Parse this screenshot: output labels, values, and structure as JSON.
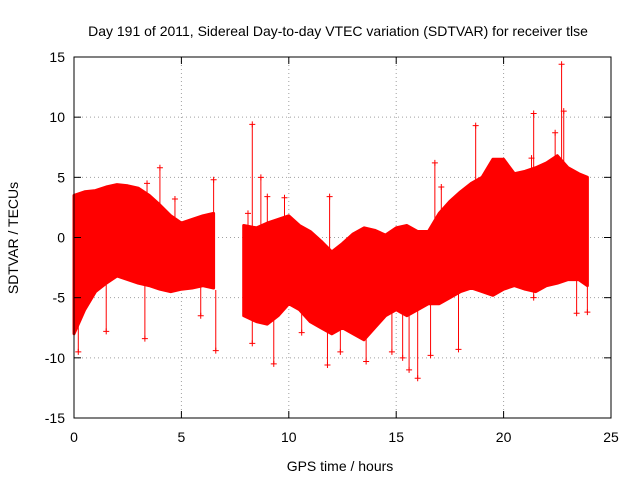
{
  "chart_data": {
    "type": "scatter",
    "title": "Day 191 of 2011, Sidereal Day-to-day VTEC variation (SDTVAR) for receiver tlse",
    "xlabel": "GPS time / hours",
    "ylabel": "SDTVAR / TECUs",
    "xlim": [
      0,
      25
    ],
    "ylim": [
      -15,
      15
    ],
    "xticks": [
      "0",
      "5",
      "10",
      "15",
      "20",
      "25"
    ],
    "yticks": [
      "-15",
      "-10",
      "-5",
      "0",
      "5",
      "10",
      "15"
    ],
    "grid": true,
    "marker": "plus",
    "series_color": "#ff0000",
    "gaps": [
      [
        6.6,
        7.9
      ]
    ],
    "envelope": {
      "x": [
        0.0,
        0.5,
        1.0,
        1.5,
        2.0,
        2.5,
        3.0,
        3.5,
        4.0,
        4.5,
        5.0,
        5.5,
        6.0,
        6.5,
        7.9,
        8.5,
        9.0,
        9.5,
        10.0,
        10.5,
        11.0,
        11.5,
        12.0,
        12.5,
        13.0,
        13.5,
        14.0,
        14.5,
        15.0,
        15.5,
        16.0,
        16.5,
        17.0,
        17.5,
        18.0,
        18.5,
        19.0,
        19.5,
        20.0,
        20.5,
        21.0,
        21.5,
        22.0,
        22.5,
        23.0,
        23.5,
        23.9
      ],
      "upper": [
        3.5,
        3.8,
        3.9,
        4.2,
        4.4,
        4.3,
        4.1,
        3.5,
        2.7,
        1.8,
        1.2,
        1.5,
        1.8,
        2.0,
        1.0,
        0.8,
        1.2,
        1.5,
        1.8,
        1.0,
        0.5,
        -0.3,
        -1.2,
        -0.5,
        0.3,
        0.8,
        0.6,
        0.2,
        0.8,
        1.0,
        0.5,
        0.5,
        2.0,
        3.0,
        3.8,
        4.5,
        5.0,
        6.5,
        6.5,
        5.3,
        5.5,
        5.8,
        6.2,
        6.8,
        5.8,
        5.3,
        5.0
      ],
      "lower": [
        -8.0,
        -6.0,
        -4.5,
        -3.8,
        -3.2,
        -3.5,
        -3.8,
        -4.0,
        -4.3,
        -4.5,
        -4.3,
        -4.2,
        -4.0,
        -4.2,
        -6.5,
        -7.0,
        -7.2,
        -6.5,
        -5.5,
        -6.0,
        -7.0,
        -7.5,
        -8.0,
        -7.5,
        -8.0,
        -8.5,
        -7.5,
        -6.5,
        -6.0,
        -6.5,
        -6.0,
        -5.5,
        -5.5,
        -5.0,
        -4.5,
        -4.2,
        -4.5,
        -4.8,
        -4.3,
        -4.0,
        -4.3,
        -4.5,
        -4.0,
        -3.8,
        -3.5,
        -3.5,
        -4.0
      ]
    },
    "outliers": [
      {
        "x": 0.2,
        "y": -9.5
      },
      {
        "x": 1.5,
        "y": -7.8
      },
      {
        "x": 3.4,
        "y": 4.5
      },
      {
        "x": 3.3,
        "y": -8.4
      },
      {
        "x": 4.0,
        "y": 5.8
      },
      {
        "x": 4.7,
        "y": 3.2
      },
      {
        "x": 5.9,
        "y": -6.5
      },
      {
        "x": 6.5,
        "y": 4.8
      },
      {
        "x": 6.6,
        "y": -9.4
      },
      {
        "x": 8.1,
        "y": 2.0
      },
      {
        "x": 8.3,
        "y": -8.8
      },
      {
        "x": 8.3,
        "y": 9.4
      },
      {
        "x": 8.7,
        "y": 5.0
      },
      {
        "x": 9.0,
        "y": 3.4
      },
      {
        "x": 9.3,
        "y": -10.5
      },
      {
        "x": 9.8,
        "y": 3.3
      },
      {
        "x": 10.6,
        "y": -7.9
      },
      {
        "x": 11.9,
        "y": 3.4
      },
      {
        "x": 11.8,
        "y": -10.6
      },
      {
        "x": 12.4,
        "y": -9.5
      },
      {
        "x": 13.6,
        "y": -10.3
      },
      {
        "x": 14.8,
        "y": -9.5
      },
      {
        "x": 15.3,
        "y": -10.0
      },
      {
        "x": 15.6,
        "y": -11.0
      },
      {
        "x": 16.0,
        "y": -11.7
      },
      {
        "x": 16.6,
        "y": -9.8
      },
      {
        "x": 16.8,
        "y": 6.2
      },
      {
        "x": 17.1,
        "y": 4.2
      },
      {
        "x": 17.9,
        "y": -9.3
      },
      {
        "x": 18.7,
        "y": 9.3
      },
      {
        "x": 21.4,
        "y": 10.3
      },
      {
        "x": 21.3,
        "y": 6.6
      },
      {
        "x": 21.4,
        "y": -5.0
      },
      {
        "x": 22.4,
        "y": 8.7
      },
      {
        "x": 22.7,
        "y": 14.4
      },
      {
        "x": 22.8,
        "y": 10.5
      },
      {
        "x": 23.4,
        "y": -6.3
      },
      {
        "x": 23.9,
        "y": -6.2
      }
    ]
  }
}
